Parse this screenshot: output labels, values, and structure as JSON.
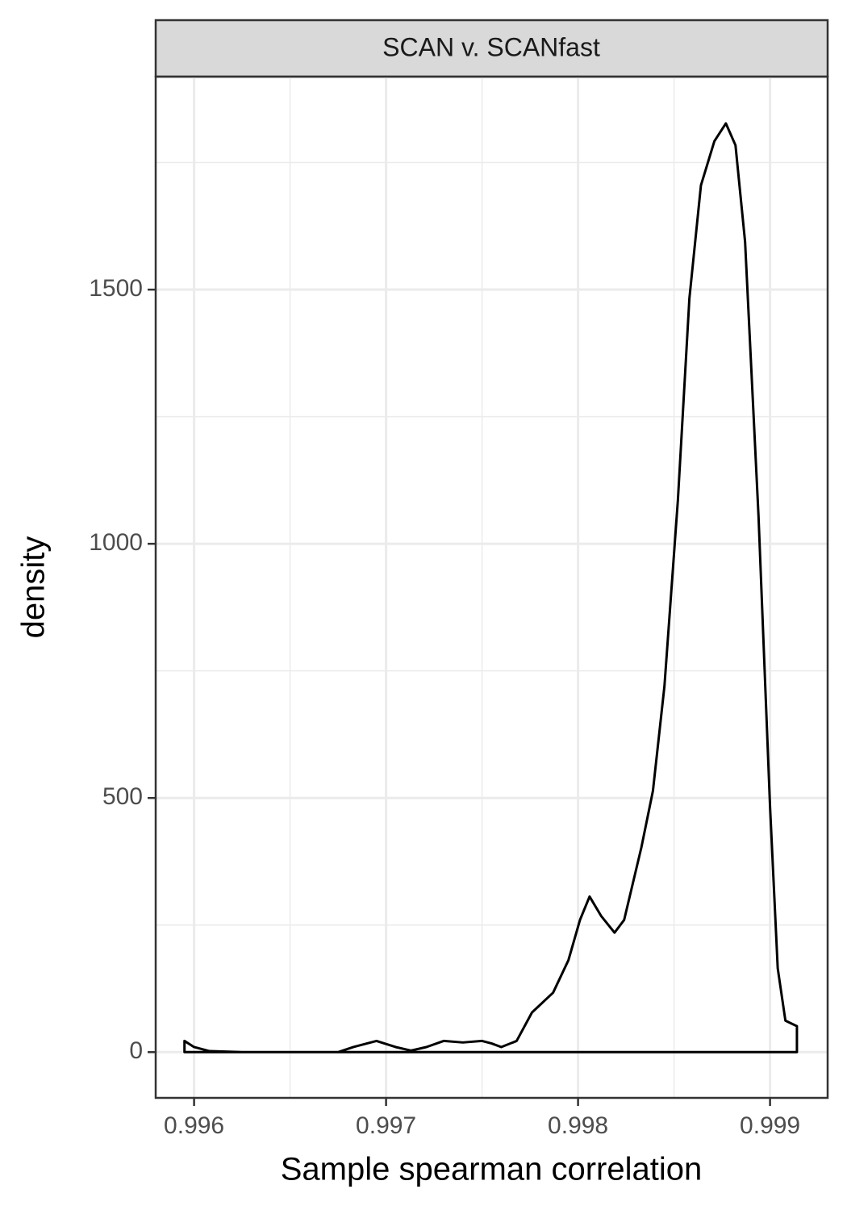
{
  "chart_data": {
    "type": "density",
    "strip_title": "SCAN v. SCANfast",
    "x_label": "Sample spearman correlation",
    "y_label": "density",
    "x": [
      0.99595,
      0.996,
      0.99608,
      0.99625,
      0.99675,
      0.99683,
      0.99695,
      0.99705,
      0.99713,
      0.99721,
      0.9973,
      0.9974,
      0.9975,
      0.99755,
      0.9976,
      0.99768,
      0.99776,
      0.99787,
      0.99795,
      0.99801,
      0.99806,
      0.99812,
      0.99819,
      0.99824,
      0.99833,
      0.99839,
      0.99845,
      0.99852,
      0.99858,
      0.99864,
      0.99871,
      0.99877,
      0.99882,
      0.99887,
      0.99894,
      0.999,
      0.99904,
      0.99908,
      0.99914
    ],
    "values": [
      22,
      10,
      2,
      0,
      0,
      10,
      22,
      10,
      3,
      10,
      22,
      19,
      22,
      17,
      10,
      22,
      78,
      117,
      181,
      260,
      306,
      268,
      235,
      260,
      403,
      514,
      720,
      1086,
      1483,
      1705,
      1792,
      1827,
      1784,
      1594,
      1054,
      483,
      165,
      62,
      51
    ],
    "color": "#000000",
    "xlim": [
      0.9958,
      0.9993
    ],
    "ylim": [
      -90,
      1919
    ],
    "xticks": [
      0.996,
      0.997,
      0.998,
      0.999
    ],
    "yticks": [
      0,
      500,
      1000,
      1500
    ],
    "x_minor_ticks": [
      0.9965,
      0.9975,
      0.9985
    ],
    "y_minor_ticks": [
      250,
      750,
      1250,
      1750
    ],
    "grid": true
  }
}
